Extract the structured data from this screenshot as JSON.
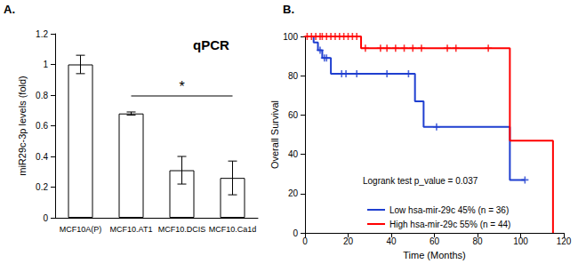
{
  "chart_data": [
    {
      "type": "bar",
      "panel_label": "A.",
      "title": "qPCR",
      "ylabel": "miR29c-3p levels (fold)",
      "categories": [
        "MCF10A(P)",
        "MCF10.AT1",
        "MCF10.DCIS",
        "MCF10.Ca1d"
      ],
      "values": [
        1.0,
        0.68,
        0.31,
        0.26
      ],
      "errors": [
        0.06,
        0.01,
        0.09,
        0.11
      ],
      "color": "#ffffff",
      "ylim": [
        0,
        1.2
      ],
      "yticks": [
        0,
        0.2,
        0.4,
        0.6,
        0.8,
        1,
        1.2
      ],
      "grid": false,
      "significance": {
        "from": "MCF10.AT1",
        "to": "MCF10.Ca1d",
        "label": "*"
      }
    },
    {
      "type": "line",
      "line_style": "step",
      "panel_label": "B.",
      "xlabel": "Time (Months)",
      "ylabel": "Overall Survival",
      "annotation": "Logrank test p_value = 0.037",
      "xlim": [
        0,
        120
      ],
      "xticks": [
        0,
        20,
        40,
        60,
        80,
        100,
        120
      ],
      "ylim": [
        0,
        100
      ],
      "yticks": [
        0,
        20,
        40,
        60,
        80,
        100
      ],
      "grid": false,
      "legend": "lower center",
      "series": [
        {
          "name": "Low hsa-mir-29c 45% (n = 36)",
          "color": "#1f3fd0",
          "x": [
            0,
            4,
            6,
            8,
            12,
            51,
            55,
            95,
            102
          ],
          "values": [
            100,
            97,
            93,
            89,
            81,
            67,
            54,
            27,
            27
          ],
          "marker": "+",
          "censor_x": [
            7,
            9,
            10,
            17,
            19,
            24,
            38,
            48,
            61,
            102
          ],
          "censor_values": [
            93,
            89,
            89,
            81,
            81,
            81,
            81,
            81,
            54,
            27
          ]
        },
        {
          "name": "High hsa-mir-29c 55% (n = 44)",
          "color": "#ff0000",
          "x": [
            0,
            26,
            95,
            115
          ],
          "values": [
            100,
            94,
            47,
            0
          ],
          "marker": "+",
          "censor_x": [
            1,
            3,
            5,
            7,
            8,
            10,
            12,
            14,
            16,
            18,
            20,
            22,
            24,
            28,
            35,
            38,
            42,
            46,
            50,
            54,
            66,
            70,
            85
          ],
          "censor_values": [
            100,
            100,
            100,
            100,
            100,
            100,
            100,
            100,
            100,
            100,
            100,
            100,
            100,
            94,
            94,
            94,
            94,
            94,
            94,
            94,
            94,
            94,
            94
          ]
        }
      ]
    }
  ]
}
